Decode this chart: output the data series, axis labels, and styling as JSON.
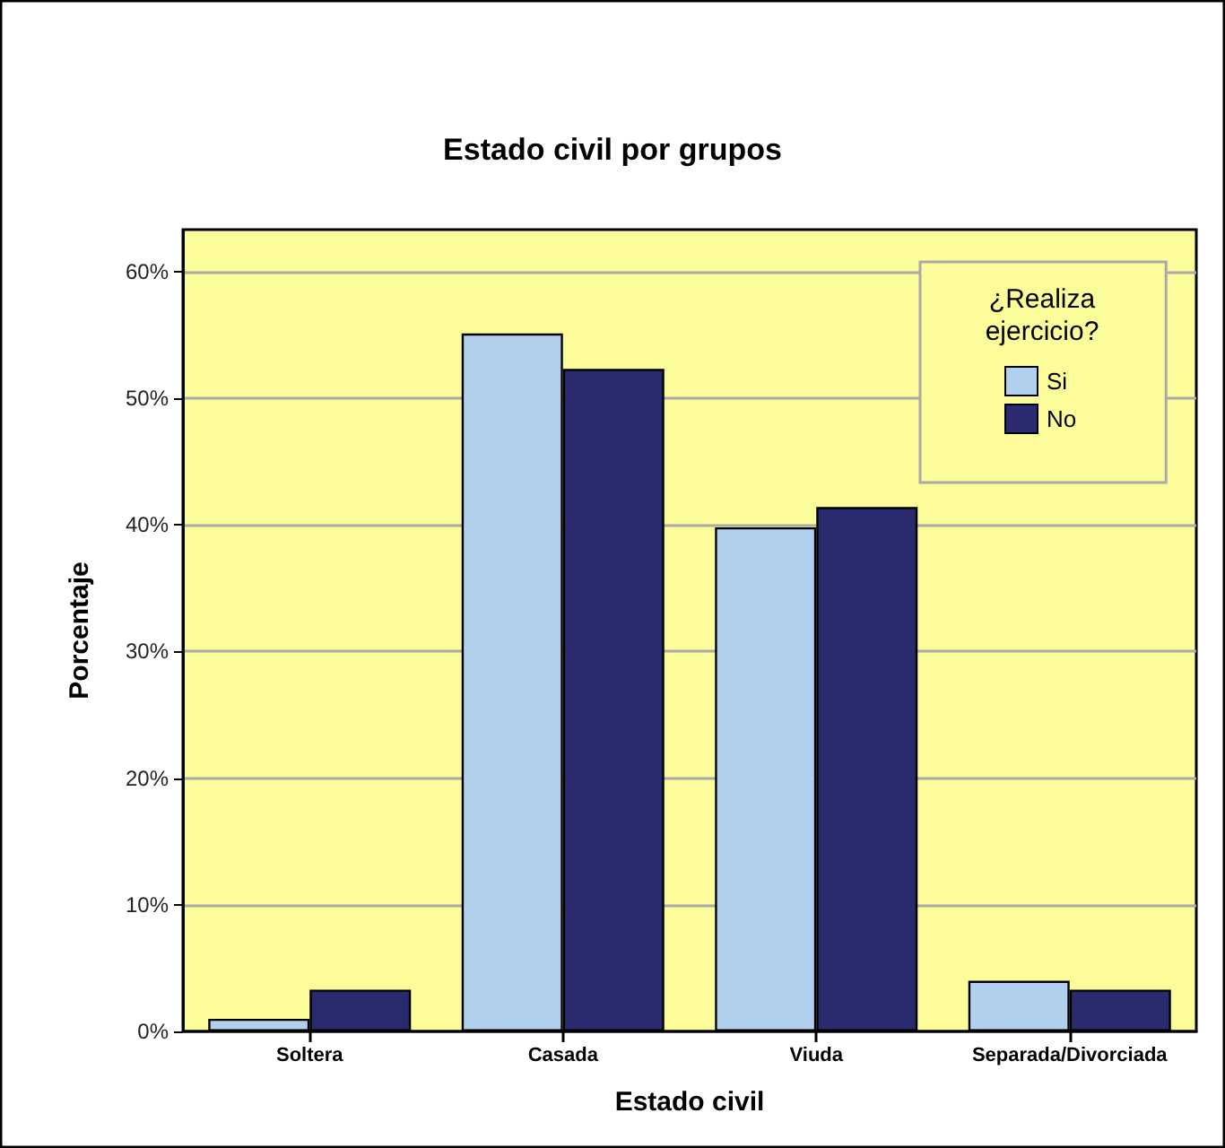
{
  "chart_data": {
    "type": "bar",
    "title": "Estado civil por grupos",
    "xlabel": "Estado civil",
    "ylabel": "Porcentaje",
    "legend_title": "¿Realiza ejercicio?",
    "categories": [
      "Soltera",
      "Casada",
      "Viuda",
      "Separada/Divorciada"
    ],
    "series": [
      {
        "name": "Si",
        "color": "#b0d0ee",
        "values": [
          1.0,
          55.1,
          39.8,
          4.0
        ]
      },
      {
        "name": "No",
        "color": "#2a2a6e",
        "values": [
          3.3,
          52.3,
          41.4,
          3.3
        ]
      }
    ],
    "ylim": [
      0,
      63.3
    ],
    "yticks": [
      {
        "value": 0,
        "label": "0%"
      },
      {
        "value": 10,
        "label": "10%"
      },
      {
        "value": 20,
        "label": "20%"
      },
      {
        "value": 30,
        "label": "30%"
      },
      {
        "value": 40,
        "label": "40%"
      },
      {
        "value": 50,
        "label": "50%"
      },
      {
        "value": 60,
        "label": "60%"
      }
    ],
    "grid": "y",
    "legend": "top right"
  }
}
